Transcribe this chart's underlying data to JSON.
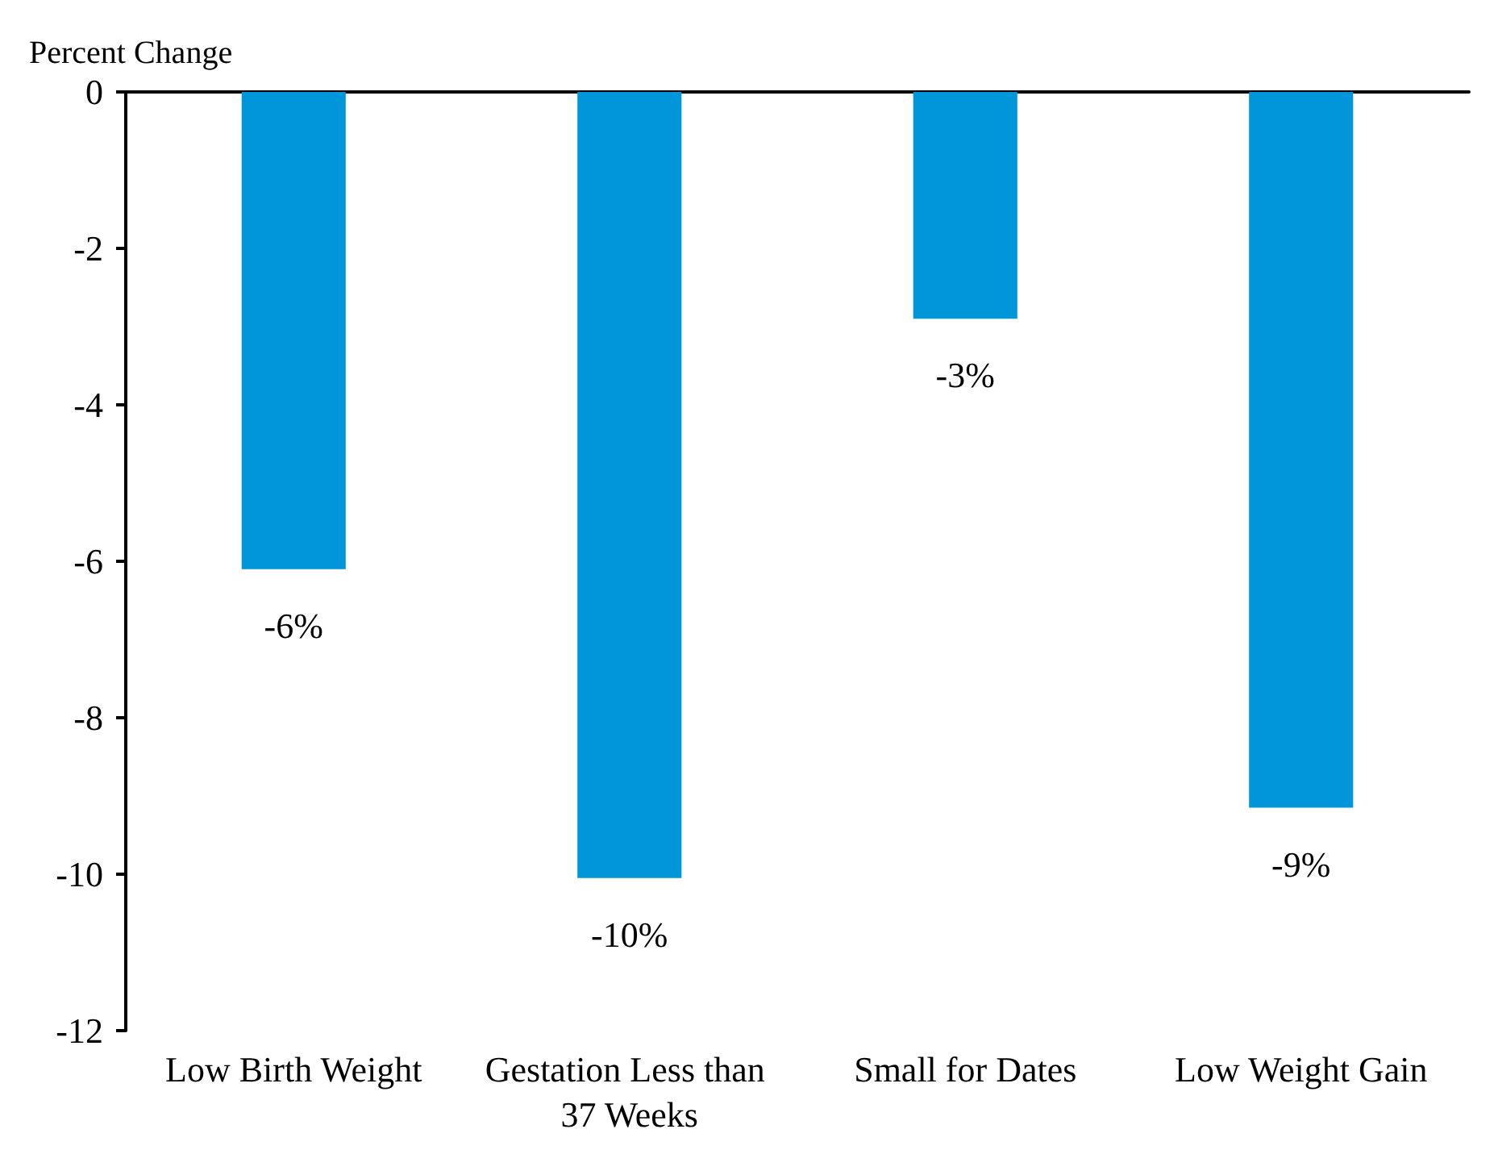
{
  "chart_data": {
    "type": "bar",
    "ylabel": "Percent Change",
    "categories": [
      "Low Birth Weight",
      "Gestation Less than 37 Weeks",
      "Small for Dates",
      "Low Weight Gain"
    ],
    "values": [
      -6.1,
      -10.05,
      -2.9,
      -9.15
    ],
    "value_labels": [
      "-6%",
      "-10%",
      "-3%",
      "-9%"
    ],
    "color": "#0096d9",
    "ylim": [
      -12,
      0
    ],
    "yticks": [
      -12,
      -10,
      -8,
      -6,
      -4,
      -2,
      0
    ],
    "grid": false
  }
}
